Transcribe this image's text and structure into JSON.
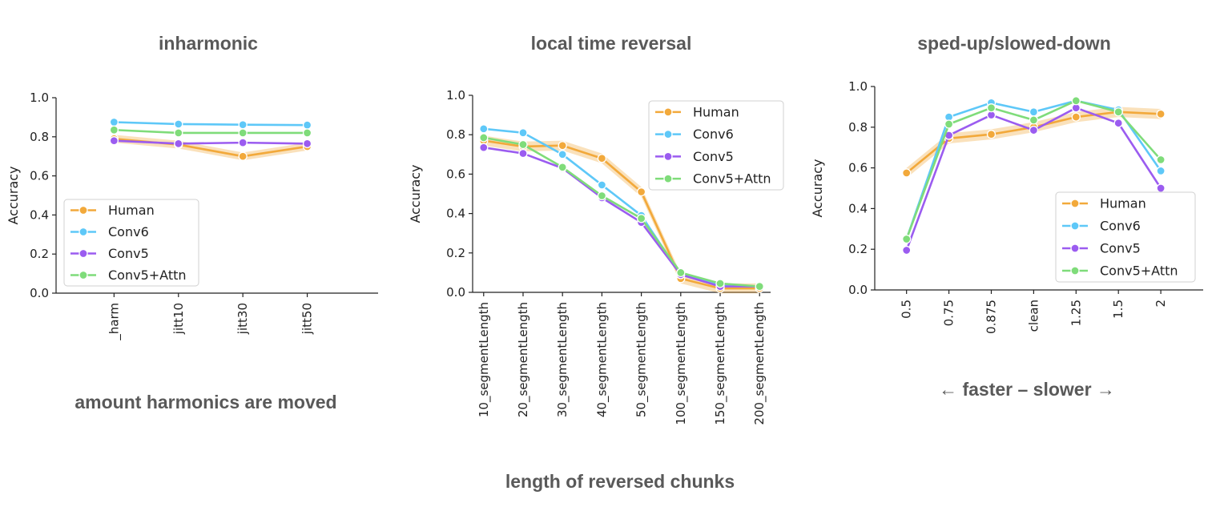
{
  "colors": {
    "Human": "#f2a93b",
    "Conv6": "#5ec8f8",
    "Conv5": "#9b5cf0",
    "Conv5+Attn": "#7fdc7a"
  },
  "chart_data": [
    {
      "type": "line",
      "title": "inharmonic",
      "bottom_label": "amount harmonics are moved",
      "xlabel": "",
      "ylabel": "Accuracy",
      "ylim": [
        0,
        1.0
      ],
      "yticks": [
        "0.0",
        "0.2",
        "0.4",
        "0.6",
        "0.8",
        "1.0"
      ],
      "categories": [
        "_harm",
        "jitt10",
        "jitt30",
        "jitt50"
      ],
      "legend_position": "lower-left",
      "series": [
        {
          "name": "Human",
          "values": [
            0.79,
            0.76,
            0.7,
            0.75
          ],
          "ci": 0.02
        },
        {
          "name": "Conv6",
          "values": [
            0.875,
            0.865,
            0.862,
            0.86
          ]
        },
        {
          "name": "Conv5",
          "values": [
            0.78,
            0.765,
            0.77,
            0.765
          ]
        },
        {
          "name": "Conv5+Attn",
          "values": [
            0.835,
            0.82,
            0.82,
            0.82
          ]
        }
      ]
    },
    {
      "type": "line",
      "title": "local time reversal",
      "bottom_label": "length of reversed chunks",
      "xlabel": "",
      "ylabel": "Accuracy",
      "ylim": [
        0,
        1.0
      ],
      "yticks": [
        "0.0",
        "0.2",
        "0.4",
        "0.6",
        "0.8",
        "1.0"
      ],
      "categories": [
        "10_segmentLength",
        "20_segmentLength",
        "30_segmentLength",
        "40_segmentLength",
        "50_segmentLength",
        "100_segmentLength",
        "150_segmentLength",
        "200_segmentLength"
      ],
      "legend_position": "top-right",
      "series": [
        {
          "name": "Human",
          "values": [
            0.77,
            0.74,
            0.745,
            0.68,
            0.51,
            0.07,
            0.02,
            0.02
          ],
          "ci": 0.025
        },
        {
          "name": "Conv6",
          "values": [
            0.83,
            0.81,
            0.7,
            0.545,
            0.39,
            0.09,
            0.04,
            0.03
          ]
        },
        {
          "name": "Conv5",
          "values": [
            0.735,
            0.705,
            0.63,
            0.48,
            0.355,
            0.09,
            0.03,
            0.03
          ]
        },
        {
          "name": "Conv5+Attn",
          "values": [
            0.785,
            0.75,
            0.635,
            0.49,
            0.375,
            0.1,
            0.045,
            0.03
          ]
        }
      ]
    },
    {
      "type": "line",
      "title": "sped-up/slowed-down",
      "bottom_label": "← faster – slower →",
      "xlabel": "",
      "ylabel": "Accuracy",
      "ylim": [
        0,
        1.0
      ],
      "yticks": [
        "0.0",
        "0.2",
        "0.4",
        "0.6",
        "0.8",
        "1.0"
      ],
      "categories": [
        "0.5",
        "0.75",
        "0.875",
        "clean",
        "1.25",
        "1.5",
        "2"
      ],
      "legend_position": "lower-right",
      "series": [
        {
          "name": "Human",
          "values": [
            0.575,
            0.745,
            0.765,
            0.8,
            0.85,
            0.875,
            0.865
          ],
          "ci": 0.025
        },
        {
          "name": "Conv6",
          "values": [
            0.25,
            0.85,
            0.92,
            0.875,
            0.93,
            0.885,
            0.585
          ]
        },
        {
          "name": "Conv5",
          "values": [
            0.195,
            0.76,
            0.86,
            0.785,
            0.895,
            0.82,
            0.5
          ]
        },
        {
          "name": "Conv5+Attn",
          "values": [
            0.25,
            0.815,
            0.895,
            0.835,
            0.93,
            0.875,
            0.64
          ]
        }
      ]
    }
  ]
}
